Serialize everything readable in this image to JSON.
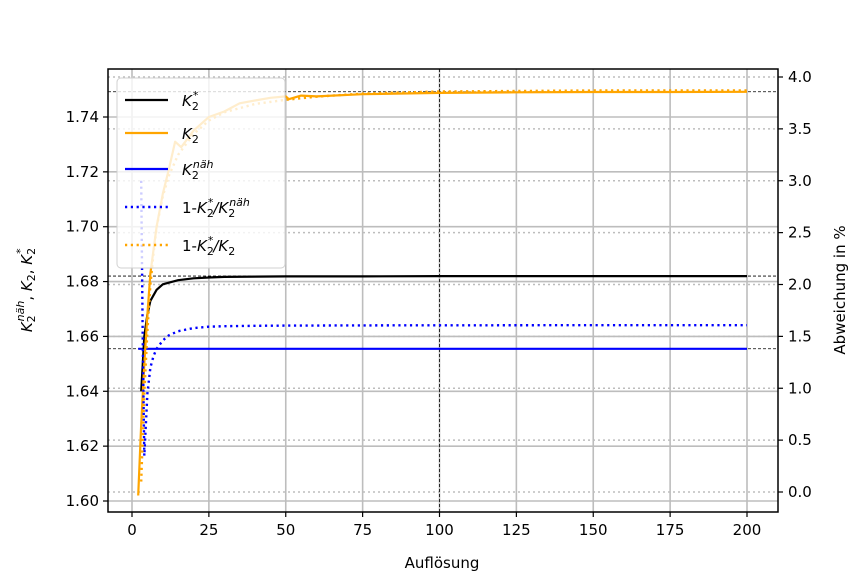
{
  "chart_data": {
    "type": "line",
    "title": "",
    "xlabel": "Auflösung",
    "ylabel": "K2^näh, K2, K2*",
    "ylabel_right": "Abweichung in %",
    "xlim": [
      -7.5,
      210
    ],
    "ylim": [
      1.596,
      1.757
    ],
    "ylim_right": [
      -0.2,
      4.1
    ],
    "x_ticks": [
      0,
      25,
      50,
      75,
      100,
      125,
      150,
      175,
      200
    ],
    "x_tick_labels": [
      "0",
      "25",
      "50",
      "75",
      "100",
      "125",
      "150",
      "175",
      "200"
    ],
    "y_ticks": [
      1.6,
      1.62,
      1.64,
      1.66,
      1.68,
      1.7,
      1.72,
      1.74
    ],
    "y_tick_labels": [
      "1.60",
      "1.62",
      "1.64",
      "1.66",
      "1.68",
      "1.70",
      "1.72",
      "1.74"
    ],
    "y_right_ticks": [
      0.0,
      0.5,
      1.0,
      1.5,
      2.0,
      2.5,
      3.0,
      3.5,
      4.0
    ],
    "y_right_tick_labels": [
      "0.0",
      "0.5",
      "1.0",
      "1.5",
      "2.0",
      "2.5",
      "3.0",
      "3.5",
      "4.0"
    ],
    "grid": true,
    "legend_position": "upper left",
    "reference_lines": {
      "horizontal_left_axis": [
        1.7492,
        1.682,
        1.6555
      ],
      "vertical_x": 100
    },
    "series": [
      {
        "name": "K2*",
        "legend_label": "K₂*",
        "axis": "left",
        "style": "solid",
        "color": "#000000",
        "x": [
          3,
          4,
          5,
          6,
          8,
          10,
          15,
          20,
          25,
          30,
          50,
          75,
          100,
          150,
          200
        ],
        "values": [
          1.64,
          1.66,
          1.668,
          1.673,
          1.677,
          1.679,
          1.6805,
          1.6812,
          1.6815,
          1.6817,
          1.6819,
          1.6819,
          1.682,
          1.682,
          1.682
        ]
      },
      {
        "name": "K2",
        "legend_label": "K₂",
        "axis": "left",
        "style": "solid",
        "color": "#ffa500",
        "x": [
          2,
          3,
          4,
          5,
          6,
          8,
          10,
          12,
          14,
          16,
          20,
          25,
          30,
          35,
          40,
          45,
          50,
          51,
          55,
          60,
          75,
          100,
          125,
          150,
          175,
          200
        ],
        "values": [
          1.602,
          1.628,
          1.65,
          1.668,
          1.683,
          1.7,
          1.712,
          1.721,
          1.731,
          1.729,
          1.735,
          1.74,
          1.742,
          1.745,
          1.746,
          1.747,
          1.7475,
          1.7465,
          1.7478,
          1.7475,
          1.7483,
          1.7488,
          1.749,
          1.7491,
          1.7491,
          1.7492
        ]
      },
      {
        "name": "K2näh",
        "legend_label": "K₂ⁿᵃ̈ʰ",
        "axis": "left",
        "style": "solid",
        "color": "#0000ff",
        "x": [
          2,
          200
        ],
        "values": [
          1.6555,
          1.6555
        ]
      },
      {
        "name": "1-K2*/K2näh",
        "legend_label": "1-K₂*/K₂ⁿᵃ̈ʰ",
        "axis": "right",
        "style": "dotted",
        "color": "#0000ff",
        "x": [
          3,
          3.5,
          4,
          5,
          6,
          7,
          8,
          10,
          12,
          15,
          20,
          25,
          30,
          40,
          50,
          75,
          100,
          150,
          200
        ],
        "values": [
          3.0,
          1.4,
          0.35,
          0.95,
          1.2,
          1.31,
          1.38,
          1.46,
          1.51,
          1.55,
          1.58,
          1.593,
          1.598,
          1.602,
          1.604,
          1.606,
          1.607,
          1.608,
          1.608
        ]
      },
      {
        "name": "1-K2*/K2",
        "legend_label": "1-K₂*/K₂",
        "axis": "right",
        "style": "dotted",
        "color": "#ffa500",
        "x": [
          3,
          4,
          5,
          6,
          7,
          8,
          10,
          12,
          15,
          20,
          25,
          30,
          40,
          50,
          60,
          75,
          100,
          125,
          150,
          200
        ],
        "values": [
          0.1,
          0.95,
          1.55,
          2.0,
          2.3,
          2.55,
          2.85,
          3.05,
          3.25,
          3.45,
          3.58,
          3.66,
          3.74,
          3.78,
          3.81,
          3.84,
          3.86,
          3.865,
          3.87,
          3.87
        ]
      }
    ]
  }
}
